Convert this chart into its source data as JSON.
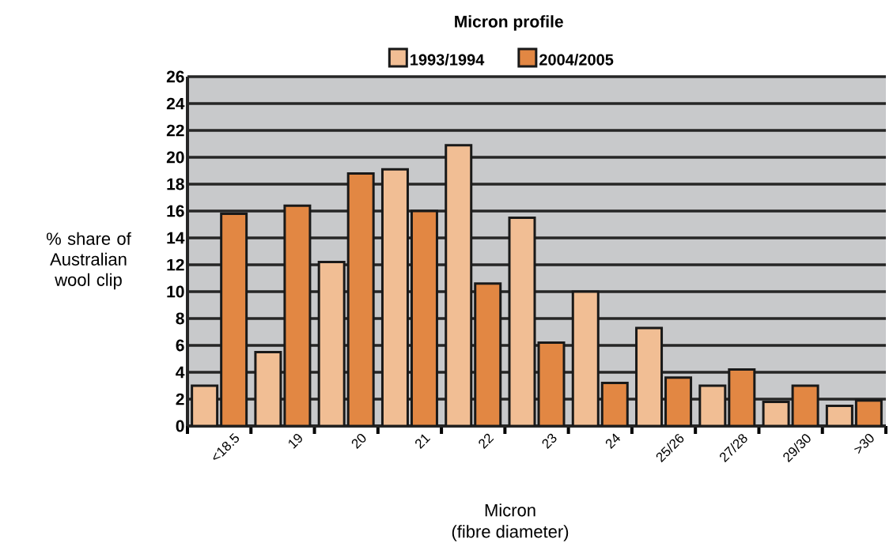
{
  "chart_data": {
    "type": "bar",
    "title": "Micron profile",
    "xlabel": "Micron\n(fibre diameter)",
    "ylabel": "% share of Australian wool clip",
    "categories": [
      "<18.5",
      "19",
      "20",
      "21",
      "22",
      "23",
      "24",
      "25/26",
      "27/28",
      "29/30",
      ">30"
    ],
    "series": [
      {
        "name": "1993/1994",
        "color": "#f1be94",
        "values": [
          3,
          5.5,
          12.2,
          19.1,
          20.9,
          15.5,
          10,
          7.3,
          3,
          1.8,
          1.5
        ]
      },
      {
        "name": "2004/2005",
        "color": "#e28743",
        "values": [
          15.8,
          16.4,
          18.8,
          16,
          10.6,
          6.2,
          3.2,
          3.6,
          4.2,
          3,
          1.9
        ]
      }
    ],
    "ylim": [
      0,
      26
    ],
    "yticks": [
      0,
      2,
      4,
      6,
      8,
      10,
      12,
      14,
      16,
      18,
      20,
      22,
      24,
      26
    ],
    "grid": "y",
    "legend": "top"
  }
}
